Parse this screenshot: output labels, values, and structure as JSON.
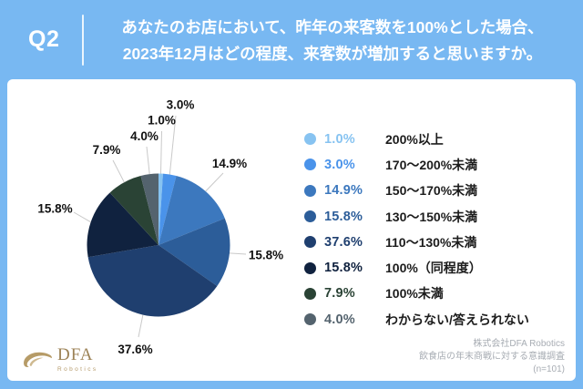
{
  "header": {
    "question_label": "Q2",
    "title_line1": "あなたのお店において、昨年の来客数を100%とした場合、",
    "title_line2": "2023年12月はどの程度、来客数が増加すると思いますか。"
  },
  "chart_data": {
    "type": "pie",
    "title": "あなたのお店において、昨年の来客数を100%とした場合、2023年12月はどの程度、来客数が増加すると思いますか。",
    "categories": [
      "200%以上",
      "170〜200%未満",
      "150〜170%未満",
      "130〜150%未満",
      "110〜130%未満",
      "100%（同程度）",
      "100%未満",
      "わからない/答えられない"
    ],
    "values": [
      1.0,
      3.0,
      14.9,
      15.8,
      37.6,
      15.8,
      7.9,
      4.0
    ],
    "value_labels": [
      "1.0%",
      "3.0%",
      "14.9%",
      "15.8%",
      "37.6%",
      "15.8%",
      "7.9%",
      "4.0%"
    ],
    "colors": [
      "#87c3f1",
      "#4a93ea",
      "#3c78be",
      "#2c5d99",
      "#1f3f6f",
      "#10223f",
      "#2a4335",
      "#54636e"
    ],
    "start_angle_deg": 0,
    "direction": "clockwise",
    "legend_position": "right",
    "units": "percent of respondents",
    "sample_size_label": "(n=101)"
  },
  "footer": {
    "logo_name": "DFA",
    "logo_sub": "Robotics",
    "source_line1": "株式会社DFA Robotics",
    "source_line2": "飲食店の年末商戦に対する意識調査",
    "source_line3": "(n=101)"
  },
  "colors": {
    "background": "#78b8f2",
    "card": "#ffffff",
    "header_text": "#ffffff",
    "pie_label_text": "#111111",
    "leader_line": "#c9c9c9",
    "legend_label_text": "#1c1c1c",
    "source_text": "#a7acb3",
    "logo_gold": "#9c8256"
  }
}
